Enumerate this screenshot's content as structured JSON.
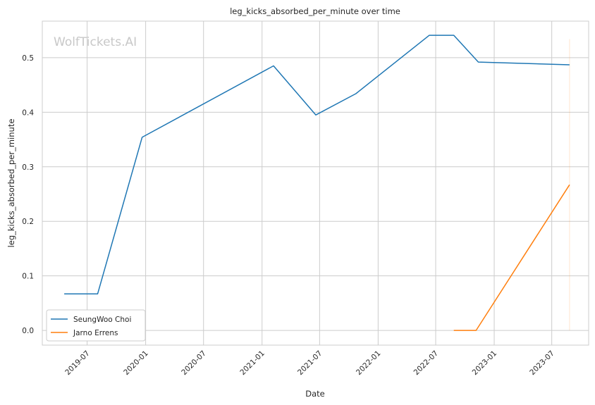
{
  "chart_data": {
    "type": "line",
    "title": "leg_kicks_absorbed_per_minute over time",
    "xlabel": "Date",
    "ylabel": "leg_kicks_absorbed_per_minute",
    "watermark": "WolfTickets.AI",
    "x_ticks": [
      "2019-07",
      "2020-01",
      "2020-07",
      "2021-01",
      "2021-07",
      "2022-01",
      "2022-07",
      "2023-01",
      "2023-07"
    ],
    "y_ticks": [
      "0.0",
      "0.1",
      "0.2",
      "0.3",
      "0.4",
      "0.5"
    ],
    "xlim": [
      "2019-02-10",
      "2023-10-25"
    ],
    "ylim": [
      -0.027,
      0.567
    ],
    "grid": true,
    "legend_position": "lower-left",
    "series": [
      {
        "name": "SeungWoo Choi",
        "color": "#1f77b4",
        "points": [
          {
            "x": "2019-04-20",
            "y": 0.067
          },
          {
            "x": "2019-08-03",
            "y": 0.067
          },
          {
            "x": "2019-12-21",
            "y": 0.354
          },
          {
            "x": "2021-02-06",
            "y": 0.485
          },
          {
            "x": "2021-06-19",
            "y": 0.395
          },
          {
            "x": "2021-10-23",
            "y": 0.434
          },
          {
            "x": "2022-06-11",
            "y": 0.541
          },
          {
            "x": "2022-08-27",
            "y": 0.541
          },
          {
            "x": "2022-11-12",
            "y": 0.492
          },
          {
            "x": "2023-08-26",
            "y": 0.487
          }
        ]
      },
      {
        "name": "Jarno Errens",
        "color": "#ff7f0e",
        "points": [
          {
            "x": "2022-08-27",
            "y": 0.0
          },
          {
            "x": "2022-11-05",
            "y": 0.0
          },
          {
            "x": "2023-08-26",
            "y": 0.267
          }
        ]
      }
    ],
    "marker_line": {
      "x": "2023-08-26",
      "y_range": [
        0.0,
        0.534
      ],
      "color": "#ff7f0e"
    }
  }
}
